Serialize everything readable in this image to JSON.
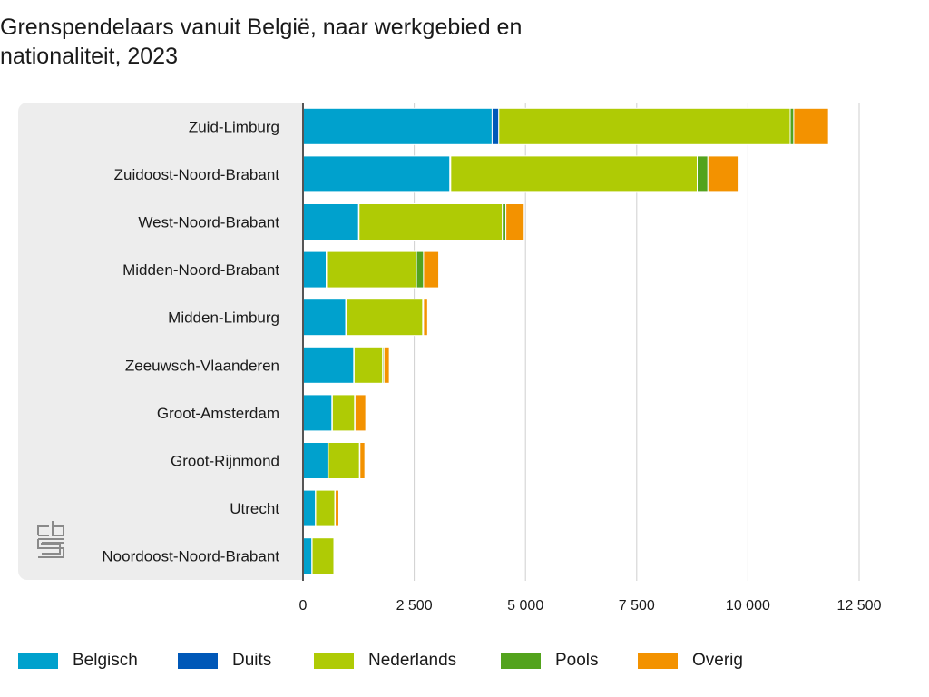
{
  "title": "Grenspendelaars vanuit België, naar werkgebied en\nnationaliteit, 2023",
  "chart_data": {
    "type": "bar",
    "orientation": "horizontal",
    "stacked": true,
    "title": "Grenspendelaars vanuit België, naar werkgebied en nationaliteit, 2023",
    "xlabel": "",
    "ylabel": "",
    "xlim": [
      0,
      12500
    ],
    "x_ticks": [
      0,
      2500,
      5000,
      7500,
      10000,
      12500
    ],
    "x_tick_labels": [
      "0",
      "2 500",
      "5 000",
      "7 500",
      "10 000",
      "12 500"
    ],
    "grid": "vertical",
    "legend_position": "bottom",
    "categories": [
      "Zuid-Limburg",
      "Zuidoost-Noord-Brabant",
      "West-Noord-Brabant",
      "Midden-Noord-Brabant",
      "Midden-Limburg",
      "Zeeuwsch-Vlaanderen",
      "Groot-Amsterdam",
      "Groot-Rijnmond",
      "Utrecht",
      "Noordoost-Noord-Brabant"
    ],
    "series": [
      {
        "name": "Belgisch",
        "color": "#00a1cd",
        "values": [
          4250,
          3300,
          1250,
          520,
          960,
          1140,
          650,
          560,
          280,
          200
        ]
      },
      {
        "name": "Duits",
        "color": "#0058b8",
        "values": [
          150,
          20,
          10,
          10,
          10,
          10,
          10,
          10,
          5,
          5
        ]
      },
      {
        "name": "Nederlands",
        "color": "#afcb05",
        "values": [
          6550,
          5540,
          3220,
          2020,
          1720,
          640,
          500,
          700,
          430,
          490
        ]
      },
      {
        "name": "Pools",
        "color": "#53a31d",
        "values": [
          80,
          240,
          80,
          160,
          20,
          30,
          10,
          10,
          10,
          5
        ]
      },
      {
        "name": "Overig",
        "color": "#f39200",
        "values": [
          780,
          700,
          410,
          340,
          90,
          120,
          240,
          110,
          80,
          5
        ]
      }
    ]
  }
}
